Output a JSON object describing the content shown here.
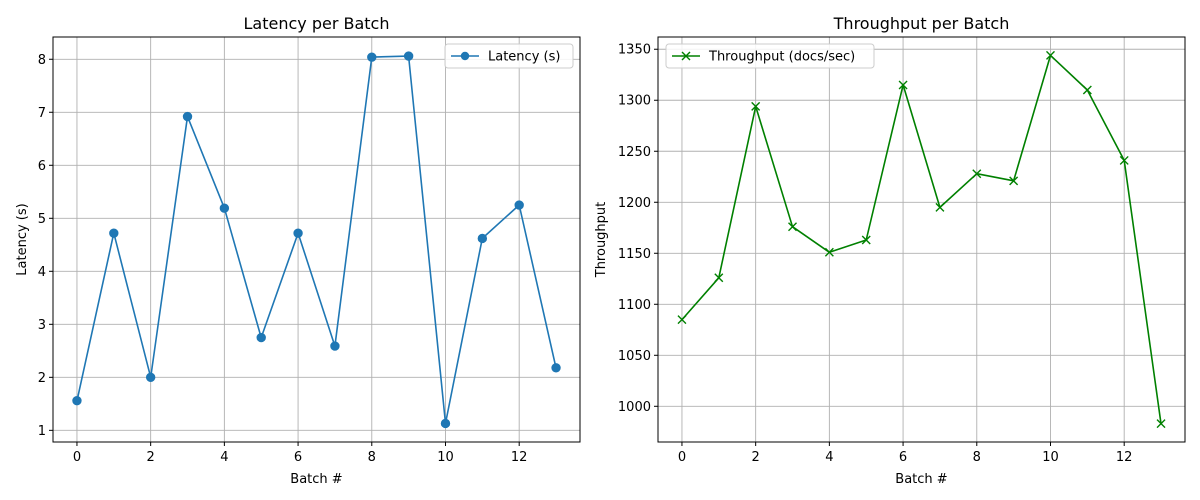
{
  "chart_data": [
    {
      "type": "line",
      "title": "Latency per Batch",
      "xlabel": "Batch #",
      "ylabel": "Latency (s)",
      "xlim": [
        -0.65,
        13.65
      ],
      "ylim": [
        0.78,
        8.42
      ],
      "xticks": [
        0,
        2,
        4,
        6,
        8,
        10,
        12
      ],
      "yticks": [
        1,
        2,
        3,
        4,
        5,
        6,
        7,
        8
      ],
      "grid": true,
      "legend_position": "top-right",
      "series": [
        {
          "name": "Latency (s)",
          "color": "#1f77b4",
          "marker": "circle",
          "x": [
            0,
            1,
            2,
            3,
            4,
            5,
            6,
            7,
            8,
            9,
            10,
            11,
            12,
            13
          ],
          "values": [
            1.56,
            4.72,
            2.0,
            6.92,
            5.19,
            2.75,
            4.72,
            2.59,
            8.04,
            8.06,
            1.13,
            4.62,
            5.25,
            2.18
          ]
        }
      ]
    },
    {
      "type": "line",
      "title": "Throughput per Batch",
      "xlabel": "Batch #",
      "ylabel": "Throughput",
      "xlim": [
        -0.65,
        13.65
      ],
      "ylim": [
        965,
        1362
      ],
      "xticks": [
        0,
        2,
        4,
        6,
        8,
        10,
        12
      ],
      "yticks": [
        1000,
        1050,
        1100,
        1150,
        1200,
        1250,
        1300,
        1350
      ],
      "grid": true,
      "legend_position": "top-left",
      "series": [
        {
          "name": "Throughput (docs/sec)",
          "color": "#008000",
          "marker": "x",
          "x": [
            0,
            1,
            2,
            3,
            4,
            5,
            6,
            7,
            8,
            9,
            10,
            11,
            12,
            13
          ],
          "values": [
            1085,
            1126,
            1294,
            1176,
            1151,
            1163,
            1315,
            1195,
            1228,
            1221,
            1344,
            1310,
            1241,
            983
          ]
        }
      ]
    }
  ]
}
